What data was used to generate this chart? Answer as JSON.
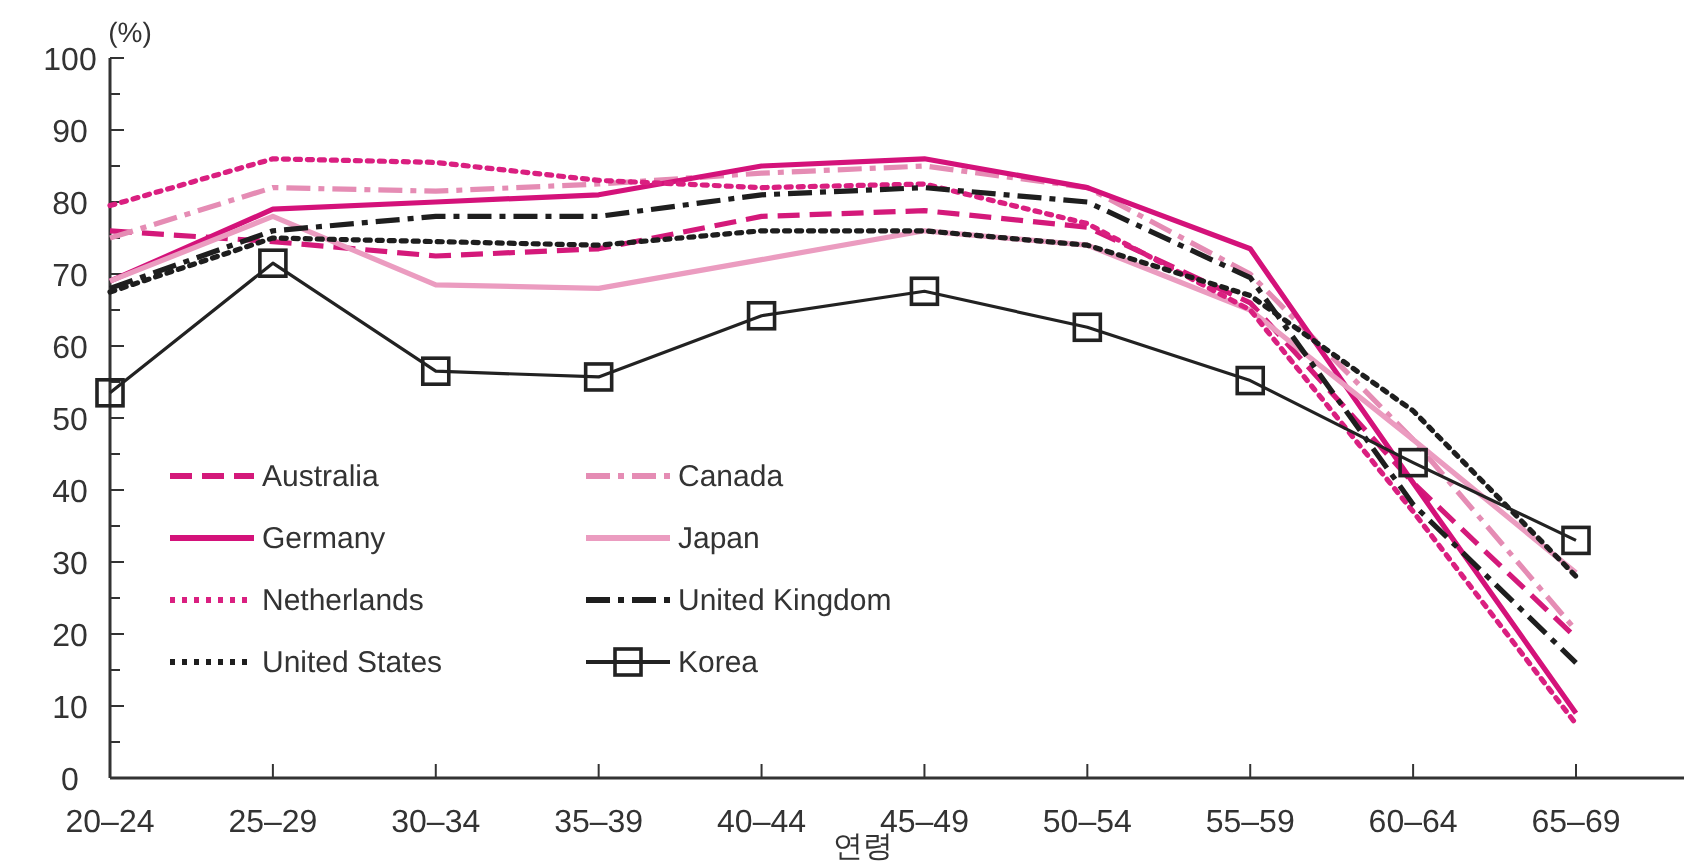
{
  "chart_data": {
    "type": "line",
    "ylabel": "(%)",
    "xlabel": "연령",
    "categories": [
      "20–24",
      "25–29",
      "30–34",
      "35–39",
      "40–44",
      "45–49",
      "50–54",
      "55–59",
      "60–64",
      "65–69"
    ],
    "ylim": [
      0,
      100
    ],
    "yticks": [
      0,
      10,
      20,
      30,
      40,
      50,
      60,
      70,
      80,
      90,
      100
    ],
    "grid": false,
    "legend": "bottom left",
    "series": [
      {
        "name": "Australia",
        "color": "#d4197a",
        "line_style": "dashed",
        "values": [
          76,
          74.5,
          72.5,
          73.5,
          78,
          78.8,
          76.5,
          66,
          41,
          19.5
        ]
      },
      {
        "name": "Canada",
        "color": "#e58cb4",
        "line_style": "dashdot",
        "values": [
          75,
          82,
          81.5,
          82.5,
          84,
          85,
          82,
          70,
          47,
          20.5
        ]
      },
      {
        "name": "Germany",
        "color": "#d4127a",
        "line_style": "solid",
        "values": [
          69,
          79,
          80,
          81,
          85,
          86,
          82,
          73.5,
          41,
          9
        ]
      },
      {
        "name": "Japan",
        "color": "#eb9cc0",
        "line_style": "solid",
        "values": [
          69,
          78,
          68.5,
          68,
          72,
          76,
          74,
          65,
          47,
          28.5
        ]
      },
      {
        "name": "Netherlands",
        "color": "#da1f80",
        "line_style": "dotted",
        "values": [
          79.5,
          86,
          85.5,
          83,
          82,
          82.5,
          77,
          65,
          37,
          7.5
        ]
      },
      {
        "name": "United Kingdom",
        "color": "#1e1e1e",
        "line_style": "dashdot",
        "values": [
          68,
          76,
          78,
          78,
          81,
          82,
          80,
          69.5,
          38,
          16
        ]
      },
      {
        "name": "United States",
        "color": "#1e1e1e",
        "line_style": "dotted",
        "values": [
          67.5,
          75,
          74.5,
          74,
          76,
          76,
          74,
          67,
          51,
          28
        ]
      },
      {
        "name": "Korea",
        "color": "#222222",
        "line_style": "solid",
        "marker": "square",
        "values": [
          53.5,
          71.5,
          56.5,
          55.7,
          64.2,
          67.6,
          62.6,
          55.2,
          43.8,
          33
        ]
      }
    ]
  }
}
